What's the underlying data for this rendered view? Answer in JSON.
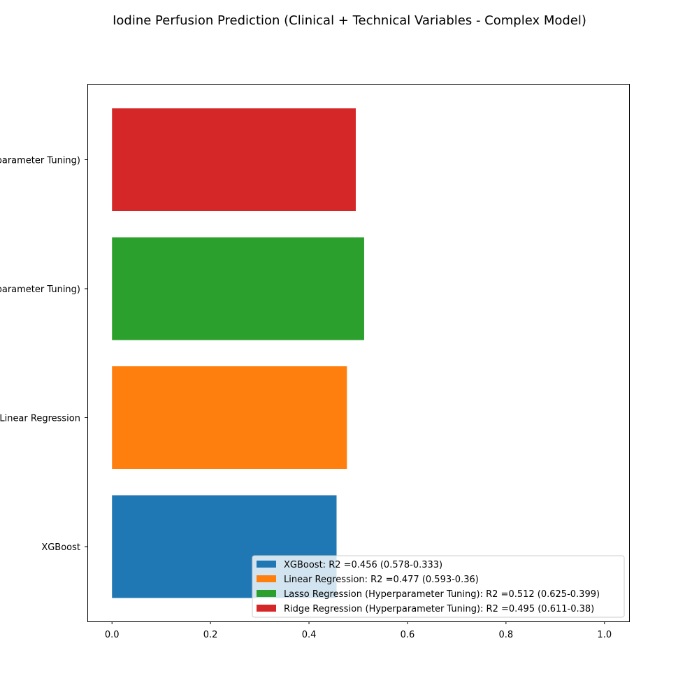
{
  "chart_data": {
    "type": "bar",
    "orientation": "horizontal",
    "title": "Iodine Perfusion Prediction (Clinical + Technical Variables - Complex Model)",
    "xlabel": "",
    "ylabel": "",
    "xlim": [
      -0.05,
      1.05
    ],
    "xticks": [
      "0.0",
      "0.2",
      "0.4",
      "0.6",
      "0.8",
      "1.0"
    ],
    "categories": [
      "XGBoost",
      "Linear Regression",
      "Lasso Regression (Hyperparameter Tuning)",
      "Ridge Regression (Hyperparameter Tuning)"
    ],
    "values": [
      0.456,
      0.477,
      0.512,
      0.495
    ],
    "colors": [
      "#1f77b4",
      "#ff7f0e",
      "#2ca02c",
      "#d62728"
    ],
    "legend": {
      "position": "lower-right",
      "entries": [
        "XGBoost: R2 =0.456 (0.578-0.333)",
        "Linear Regression: R2 =0.477 (0.593-0.36)",
        "Lasso Regression (Hyperparameter Tuning): R2 =0.512 (0.625-0.399)",
        "Ridge Regression (Hyperparameter Tuning): R2 =0.495 (0.611-0.38)"
      ]
    },
    "grid": false
  }
}
